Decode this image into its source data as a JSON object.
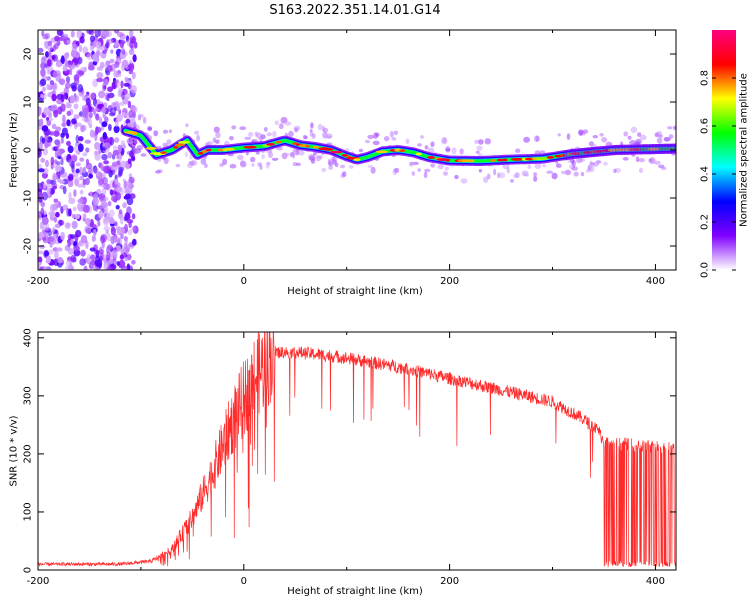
{
  "title": "S163.2022.351.14.01.G14",
  "chart_data": [
    {
      "type": "heatmap",
      "xlabel": "Height of straight line (km)",
      "ylabel": "Frequency (Hz)",
      "xlim": [
        -200,
        420
      ],
      "ylim": [
        -25,
        25
      ],
      "x_ticks": [
        -200,
        0,
        200,
        400
      ],
      "y_ticks": [
        -20,
        -10,
        0,
        10,
        20
      ],
      "colorbar": {
        "label": "Normalized spectral amplitude",
        "range": [
          0,
          1
        ],
        "ticks": [
          0.0,
          0.2,
          0.4,
          0.6,
          0.8
        ],
        "colors": [
          "#ffffff",
          "#8000ff",
          "#0000ff",
          "#00ffff",
          "#00ff00",
          "#ffff00",
          "#ff0000",
          "#ff0080"
        ]
      },
      "ridge": {
        "x": [
          -115,
          -100,
          -85,
          -70,
          -55,
          -45,
          -35,
          -20,
          0,
          20,
          40,
          55,
          70,
          85,
          100,
          110,
          120,
          135,
          150,
          165,
          180,
          200,
          230,
          260,
          290,
          320,
          360,
          420
        ],
        "y": [
          4,
          3,
          -1,
          0,
          2,
          -1,
          0,
          0,
          0.5,
          0.8,
          2,
          1,
          0.6,
          0,
          -1.3,
          -2,
          -1.5,
          -0.3,
          0,
          -0.5,
          -1.5,
          -2.2,
          -2.3,
          -2,
          -1.8,
          -0.8,
          0,
          0.3
        ]
      }
    },
    {
      "type": "line",
      "xlabel": "Height of straight line (km)",
      "ylabel": "SNR (10 * v/v)",
      "xlim": [
        -200,
        420
      ],
      "ylim": [
        0,
        410
      ],
      "x_ticks": [
        -200,
        0,
        200,
        400
      ],
      "y_ticks": [
        0,
        100,
        200,
        300,
        400
      ],
      "color": "#ff2a2a",
      "envelope": {
        "x": [
          -200,
          -120,
          -90,
          -70,
          -50,
          -30,
          -10,
          10,
          30,
          50,
          80,
          100,
          150,
          200,
          250,
          300,
          330,
          345,
          350,
          380,
          420
        ],
        "y": [
          10,
          10,
          15,
          35,
          90,
          170,
          260,
          330,
          375,
          375,
          370,
          365,
          350,
          330,
          310,
          290,
          260,
          240,
          220,
          215,
          210
        ]
      },
      "dropout_region": [
        350,
        420
      ]
    }
  ]
}
